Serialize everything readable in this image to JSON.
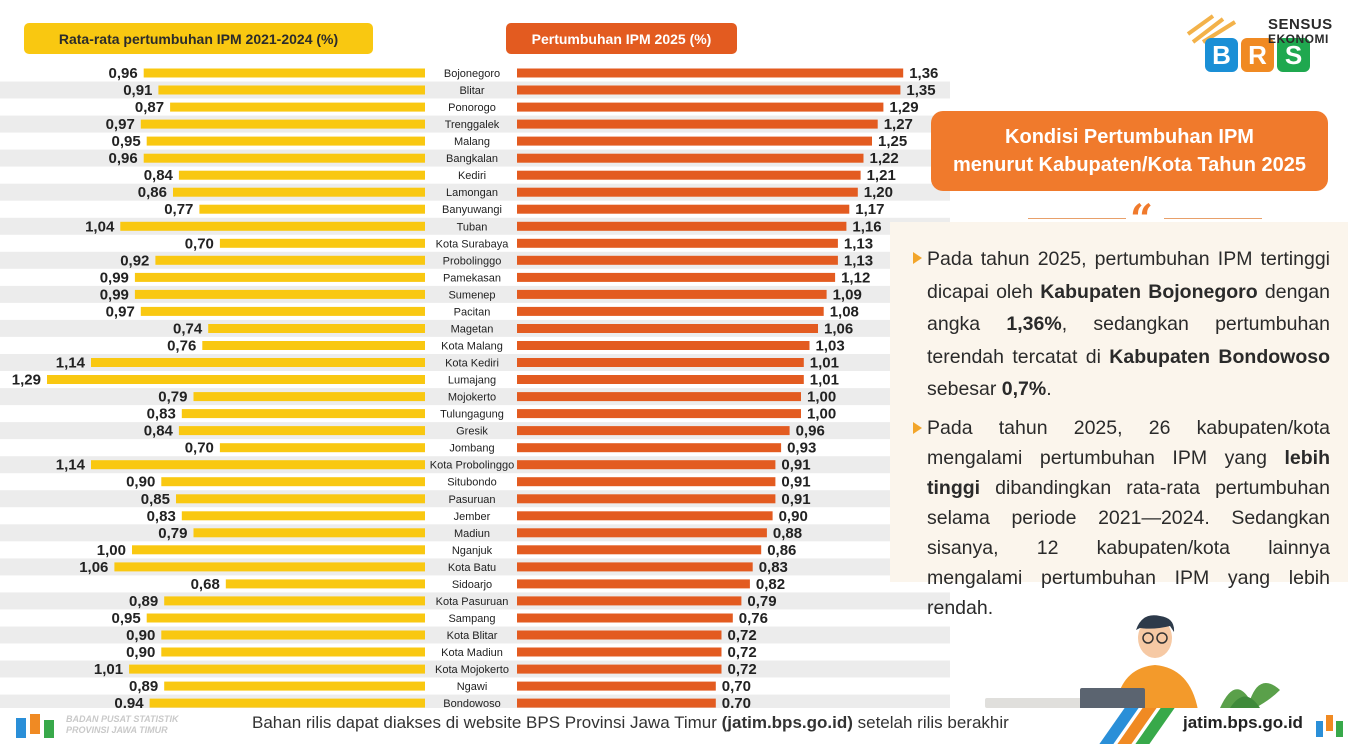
{
  "legend": {
    "avg_label": "Rata-rata pertumbuhan IPM 2021-2024 (%)",
    "growth_label": "Pertumbuhan IPM 2025 (%)"
  },
  "logo": {
    "letters": [
      "B",
      "R",
      "S"
    ],
    "line1": "SENSUS",
    "line2": "EKONOMI"
  },
  "title": {
    "line1": "Kondisi Pertumbuhan IPM",
    "line2": "menurut Kabupaten/Kota Tahun 2025"
  },
  "quote_mark": "“",
  "paragraphs": {
    "p1": {
      "t1": "Pada tahun 2025, pertumbuhan IPM tertinggi dicapai oleh ",
      "b1": "Kabupaten Bojonegoro",
      "t2": " dengan angka ",
      "b2": "1,36%",
      "t3": ", sedangkan pertumbuhan terendah tercatat di ",
      "b3": "Kabupaten Bondowoso",
      "t4": " sebesar ",
      "b4": "0,7%",
      "t5": "."
    },
    "p2": {
      "t1": "Pada tahun 2025, 26 kabupaten/kota mengalami pertumbuhan IPM yang ",
      "b1": "lebih tinggi",
      "t2": " dibandingkan rata-rata pertumbuhan selama periode 2021—2024. Sedangkan sisanya, 12 kabupaten/kota lainnya mengalami pertumbuhan IPM yang lebih rendah."
    }
  },
  "footer": {
    "text_before": "Bahan rilis dapat diakses di website BPS Provinsi Jawa Timur ",
    "text_bold": "(jatim.bps.go.id)",
    "text_after": " setelah rilis berakhir",
    "url": "jatim.bps.go.id",
    "caption_line1": "BADAN PUSAT STATISTIK",
    "caption_line2": "PROVINSI JAWA TIMUR"
  },
  "colors": {
    "avg_bar": "#f9c811",
    "growth_bar": "#e35b20",
    "accent": "#f07a2c",
    "stripe": "#ececec"
  },
  "chart_data": {
    "type": "bar",
    "orientation": "horizontal-butterfly",
    "categories": [
      "Bojonegoro",
      "Blitar",
      "Ponorogo",
      "Trenggalek",
      "Malang",
      "Bangkalan",
      "Kediri",
      "Lamongan",
      "Banyuwangi",
      "Tuban",
      "Kota Surabaya",
      "Probolinggo",
      "Pamekasan",
      "Sumenep",
      "Pacitan",
      "Magetan",
      "Kota Malang",
      "Kota Kediri",
      "Lumajang",
      "Mojokerto",
      "Tulungagung",
      "Gresik",
      "Jombang",
      "Kota Probolinggo",
      "Situbondo",
      "Pasuruan",
      "Jember",
      "Madiun",
      "Nganjuk",
      "Kota Batu",
      "Sidoarjo",
      "Kota Pasuruan",
      "Sampang",
      "Kota Blitar",
      "Kota Madiun",
      "Kota Mojokerto",
      "Ngawi",
      "Bondowoso"
    ],
    "series": [
      {
        "name": "Rata-rata pertumbuhan IPM 2021-2024 (%)",
        "values": [
          0.96,
          0.91,
          0.87,
          0.97,
          0.95,
          0.96,
          0.84,
          0.86,
          0.77,
          1.04,
          0.7,
          0.92,
          0.99,
          0.99,
          0.97,
          0.74,
          0.76,
          1.14,
          1.29,
          0.79,
          0.83,
          0.84,
          0.7,
          1.14,
          0.9,
          0.85,
          0.83,
          0.79,
          1.0,
          1.06,
          0.68,
          0.89,
          0.95,
          0.9,
          0.9,
          1.01,
          0.89,
          0.94
        ],
        "labels": [
          "0,96",
          "0,91",
          "0,87",
          "0,97",
          "0,95",
          "0,96",
          "0,84",
          "0,86",
          "0,77",
          "1,04",
          "0,70",
          "0,92",
          "0,99",
          "0,99",
          "0,97",
          "0,74",
          "0,76",
          "1,14",
          "1,29",
          "0,79",
          "0,83",
          "0,84",
          "0,70",
          "1,14",
          "0,90",
          "0,85",
          "0,83",
          "0,79",
          "1,00",
          "1,06",
          "0,68",
          "0,89",
          "0,95",
          "0,90",
          "0,90",
          "1,01",
          "0,89",
          "0,94"
        ]
      },
      {
        "name": "Pertumbuhan IPM 2025 (%)",
        "values": [
          1.36,
          1.35,
          1.29,
          1.27,
          1.25,
          1.22,
          1.21,
          1.2,
          1.17,
          1.16,
          1.13,
          1.13,
          1.12,
          1.09,
          1.08,
          1.06,
          1.03,
          1.01,
          1.01,
          1.0,
          1.0,
          0.96,
          0.93,
          0.91,
          0.91,
          0.91,
          0.9,
          0.88,
          0.86,
          0.83,
          0.82,
          0.79,
          0.76,
          0.72,
          0.72,
          0.72,
          0.7,
          0.7
        ],
        "labels": [
          "1,36",
          "1,35",
          "1,29",
          "1,27",
          "1,25",
          "1,22",
          "1,21",
          "1,20",
          "1,17",
          "1,16",
          "1,13",
          "1,13",
          "1,12",
          "1,09",
          "1,08",
          "1,06",
          "1,03",
          "1,01",
          "1,01",
          "1,00",
          "1,00",
          "0,96",
          "0,93",
          "0,91",
          "0,91",
          "0,91",
          "0,90",
          "0,88",
          "0,86",
          "0,83",
          "0,82",
          "0,79",
          "0,76",
          "0,72",
          "0,72",
          "0,72",
          "0,70",
          "0,70"
        ]
      }
    ]
  }
}
